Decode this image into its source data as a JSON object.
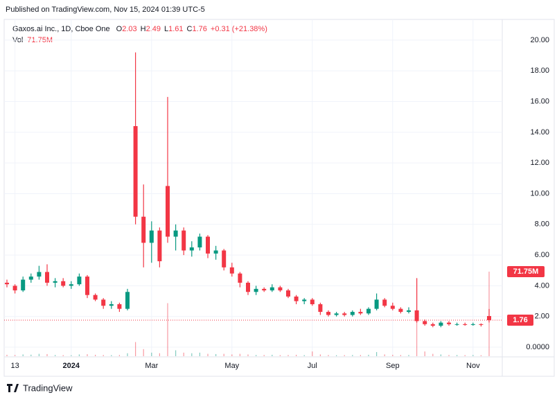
{
  "published": "Published on TradingView.com, Nov 15, 2024 01:39 UTC-5",
  "footer": "TradingView",
  "chart_data": {
    "type": "candlestick",
    "title": "Gaxos.ai Inc., 1D, Cboe One",
    "ohlc_labels": [
      "O",
      "H",
      "L",
      "C"
    ],
    "change": "+0.31 (+21.38%)",
    "volume_title": "Vol",
    "volume_label": "71.75M",
    "up_color": "#089981",
    "down_color": "#f23645",
    "grid": true,
    "ylim": [
      -0.63,
      21.26
    ],
    "yticks": [
      {
        "value": 0,
        "label": "0.0000"
      },
      {
        "value": 2,
        "label": "2.00"
      },
      {
        "value": 4,
        "label": "4.00"
      },
      {
        "value": 6,
        "label": "6.00"
      },
      {
        "value": 8,
        "label": "8.00"
      },
      {
        "value": 10,
        "label": "10.00"
      },
      {
        "value": 12,
        "label": "12.00"
      },
      {
        "value": 14,
        "label": "14.00"
      },
      {
        "value": 16,
        "label": "16.00"
      },
      {
        "value": 18,
        "label": "18.00"
      },
      {
        "value": 20,
        "label": "20.00"
      }
    ],
    "categories": [
      null,
      "13",
      null,
      null,
      null,
      null,
      null,
      null,
      "2024",
      null,
      null,
      null,
      null,
      null,
      null,
      null,
      null,
      null,
      "Mar",
      null,
      null,
      null,
      null,
      null,
      null,
      null,
      null,
      null,
      "May",
      null,
      null,
      null,
      null,
      null,
      null,
      null,
      null,
      null,
      "Jul",
      null,
      null,
      null,
      null,
      null,
      null,
      null,
      null,
      null,
      "Sep",
      null,
      null,
      null,
      null,
      null,
      null,
      null,
      null,
      null,
      "Nov",
      null,
      null
    ],
    "open": [
      4.2,
      4.0,
      3.7,
      4.4,
      4.6,
      4.9,
      4.2,
      4.3,
      4.0,
      4.1,
      4.6,
      3.4,
      3.1,
      2.7,
      2.8,
      2.5,
      14.4,
      8.5,
      6.8,
      7.6,
      10.5,
      7.2,
      7.6,
      6.3,
      6.5,
      7.2,
      6.1,
      6.3,
      5.2,
      4.8,
      4.2,
      3.6,
      3.8,
      3.7,
      3.9,
      3.7,
      3.3,
      3.0,
      3.1,
      2.8,
      2.3,
      2.1,
      2.2,
      2.1,
      2.3,
      2.2,
      2.5,
      3.1,
      2.7,
      2.5,
      2.3,
      2.4,
      1.7,
      1.5,
      1.4,
      1.6,
      1.5,
      1.5,
      1.45,
      1.5,
      2.03
    ],
    "high": [
      4.4,
      4.1,
      4.6,
      4.8,
      5.3,
      5.4,
      4.5,
      4.5,
      4.3,
      4.8,
      4.7,
      3.5,
      3.2,
      3.0,
      2.9,
      3.8,
      19.2,
      10.6,
      8.2,
      7.8,
      16.3,
      8.0,
      7.8,
      6.9,
      7.4,
      7.3,
      6.6,
      6.4,
      5.5,
      4.9,
      4.3,
      4.0,
      3.9,
      4.1,
      4.0,
      3.8,
      3.4,
      3.2,
      3.2,
      2.9,
      2.4,
      2.3,
      2.3,
      2.4,
      2.5,
      2.6,
      3.5,
      3.2,
      2.9,
      2.6,
      2.6,
      4.5,
      1.8,
      1.6,
      1.7,
      1.7,
      1.6,
      1.6,
      1.6,
      1.55,
      2.49
    ],
    "low": [
      3.9,
      3.5,
      3.6,
      4.2,
      4.4,
      4.0,
      3.9,
      3.9,
      3.8,
      4.0,
      3.2,
      3.0,
      2.5,
      2.5,
      2.3,
      2.4,
      8.0,
      5.2,
      5.5,
      5.2,
      6.8,
      6.3,
      6.0,
      5.9,
      6.3,
      5.8,
      5.7,
      5.0,
      4.6,
      3.9,
      3.4,
      3.4,
      3.6,
      3.6,
      3.6,
      3.2,
      2.8,
      2.8,
      2.7,
      2.1,
      2.0,
      2.0,
      2.0,
      2.0,
      2.1,
      2.1,
      2.4,
      2.6,
      2.4,
      2.2,
      2.2,
      1.6,
      1.4,
      1.3,
      1.3,
      1.4,
      1.4,
      1.4,
      1.4,
      1.35,
      1.61
    ],
    "close": [
      4.1,
      3.7,
      4.4,
      4.6,
      4.9,
      4.2,
      4.3,
      4.0,
      4.1,
      4.6,
      3.4,
      3.1,
      2.7,
      2.8,
      2.5,
      3.6,
      8.5,
      6.8,
      7.6,
      5.6,
      7.2,
      7.6,
      6.3,
      6.5,
      7.2,
      6.1,
      6.3,
      5.2,
      4.8,
      4.2,
      3.6,
      3.8,
      3.7,
      3.9,
      3.7,
      3.3,
      3.0,
      3.1,
      2.8,
      2.3,
      2.1,
      2.2,
      2.1,
      2.3,
      2.2,
      2.5,
      3.1,
      2.7,
      2.5,
      2.3,
      2.4,
      1.7,
      1.5,
      1.4,
      1.6,
      1.5,
      1.5,
      1.45,
      1.5,
      1.45,
      1.76
    ],
    "volume": [
      1.2,
      1.0,
      1.5,
      1.3,
      2.0,
      1.8,
      1.0,
      0.9,
      0.8,
      1.5,
      1.7,
      1.2,
      1.0,
      0.9,
      1.0,
      2.5,
      12,
      6,
      3,
      2.5,
      45,
      5,
      3,
      2.5,
      3,
      2,
      1.8,
      2,
      1.5,
      2,
      1.5,
      1,
      1,
      1.2,
      0.9,
      1,
      1.2,
      0.9,
      4,
      1.5,
      1,
      0.8,
      0.9,
      1,
      1,
      1.2,
      3.5,
      1.5,
      1.2,
      1,
      1,
      66,
      4,
      2,
      1.5,
      1,
      1,
      0.9,
      1,
      0.8,
      71.75
    ]
  }
}
